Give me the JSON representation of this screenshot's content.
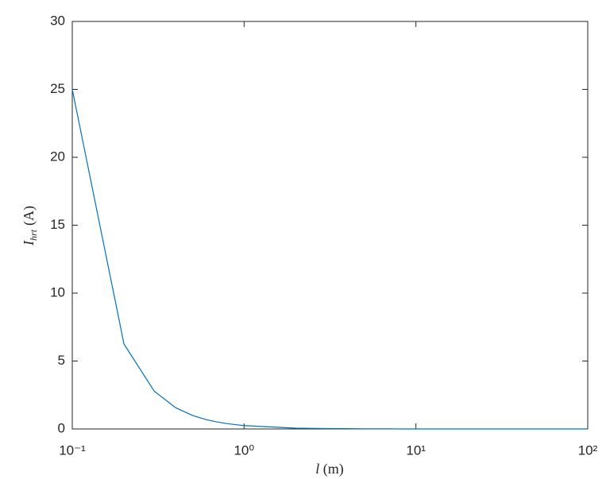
{
  "chart_data": {
    "type": "line",
    "xlabel": {
      "symbol": "l",
      "unit": "(m)"
    },
    "ylabel": {
      "symbol": "I",
      "subscript": "hrt",
      "unit": "(A)"
    },
    "x": [
      0.1,
      0.2,
      0.3,
      0.4,
      0.5,
      0.6,
      0.7,
      0.8,
      0.9,
      1,
      2,
      3,
      4,
      5,
      6,
      7,
      8,
      9,
      10,
      20,
      30,
      40,
      50,
      60,
      70,
      80,
      90,
      100
    ],
    "series": [
      {
        "color": "#0072bd",
        "values": [
          25,
          6.25,
          2.78,
          1.56,
          1,
          0.69,
          0.51,
          0.39,
          0.31,
          0.25,
          0.06,
          0.03,
          0.02,
          0.01,
          0.01,
          0.01,
          0,
          0,
          0,
          0,
          0,
          0,
          0,
          0,
          0,
          0,
          0,
          0
        ]
      }
    ],
    "xscale": "log",
    "xlim": [
      0.1,
      100
    ],
    "xticks": [
      {
        "value": 0.1,
        "label": "10⁻¹"
      },
      {
        "value": 1,
        "label": "10⁰"
      },
      {
        "value": 10,
        "label": "10¹"
      },
      {
        "value": 100,
        "label": "10²"
      }
    ],
    "ylim": [
      0,
      30
    ],
    "yticks": [
      0,
      5,
      10,
      15,
      20,
      25,
      30
    ],
    "grid": false
  }
}
